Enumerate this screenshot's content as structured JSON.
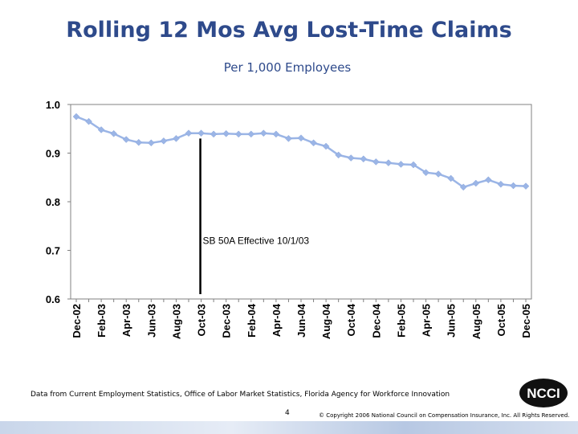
{
  "header": {
    "title": "Rolling 12 Mos Avg Lost-Time Claims",
    "subtitle": "Per 1,000 Employees"
  },
  "footer": {
    "source": "Data from Current Employment Statistics, Office of Labor Market Statistics, Florida Agency for Workforce Innovation",
    "page_number": "4",
    "copyright": "© Copyright 2006 National Council on Compensation Insurance, Inc. All Rights Reserved."
  },
  "logo": {
    "text": "NCCI",
    "icon": "ncci-logo"
  },
  "colors": {
    "title": "#2E4A8B",
    "series": "#9BB5E6",
    "annotation_line": "#000000"
  },
  "chart_data": {
    "type": "line",
    "title": "Rolling 12 Mos Avg Lost-Time Claims",
    "subtitle": "Per 1,000 Employees",
    "xlabel": "",
    "ylabel": "",
    "ylim": [
      0.6,
      1.0
    ],
    "yticks": [
      1.0,
      0.9,
      0.8,
      0.7,
      0.6
    ],
    "ytick_labels": [
      "1.0",
      "0.9",
      "0.8",
      "0.7",
      "0.6"
    ],
    "grid": false,
    "legend": "none",
    "xtick_labels": [
      "Dec-02",
      "Feb-03",
      "Apr-03",
      "Jun-03",
      "Aug-03",
      "Oct-03",
      "Dec-03",
      "Feb-04",
      "Apr-04",
      "Jun-04",
      "Aug-04",
      "Oct-04",
      "Dec-04",
      "Feb-05",
      "Apr-05",
      "Jun-05",
      "Aug-05",
      "Oct-05",
      "Dec-05"
    ],
    "x": [
      "Dec-02",
      "Jan-03",
      "Feb-03",
      "Mar-03",
      "Apr-03",
      "May-03",
      "Jun-03",
      "Jul-03",
      "Aug-03",
      "Sep-03",
      "Oct-03",
      "Nov-03",
      "Dec-03",
      "Jan-04",
      "Feb-04",
      "Mar-04",
      "Apr-04",
      "May-04",
      "Jun-04",
      "Jul-04",
      "Aug-04",
      "Sep-04",
      "Oct-04",
      "Nov-04",
      "Dec-04",
      "Jan-05",
      "Feb-05",
      "Mar-05",
      "Apr-05",
      "May-05",
      "Jun-05",
      "Jul-05",
      "Aug-05",
      "Sep-05",
      "Oct-05",
      "Nov-05",
      "Dec-05"
    ],
    "series": [
      {
        "values": [
          0.975,
          0.965,
          0.948,
          0.94,
          0.928,
          0.922,
          0.921,
          0.925,
          0.93,
          0.941,
          0.941,
          0.939,
          0.94,
          0.939,
          0.939,
          0.941,
          0.939,
          0.93,
          0.931,
          0.921,
          0.914,
          0.896,
          0.89,
          0.888,
          0.882,
          0.88,
          0.877,
          0.876,
          0.86,
          0.857,
          0.848,
          0.83,
          0.838,
          0.845,
          0.836,
          0.833,
          0.832
        ]
      }
    ],
    "annotation": {
      "text": "SB 50A Effective 10/1/03",
      "x": "Oct-03"
    }
  }
}
